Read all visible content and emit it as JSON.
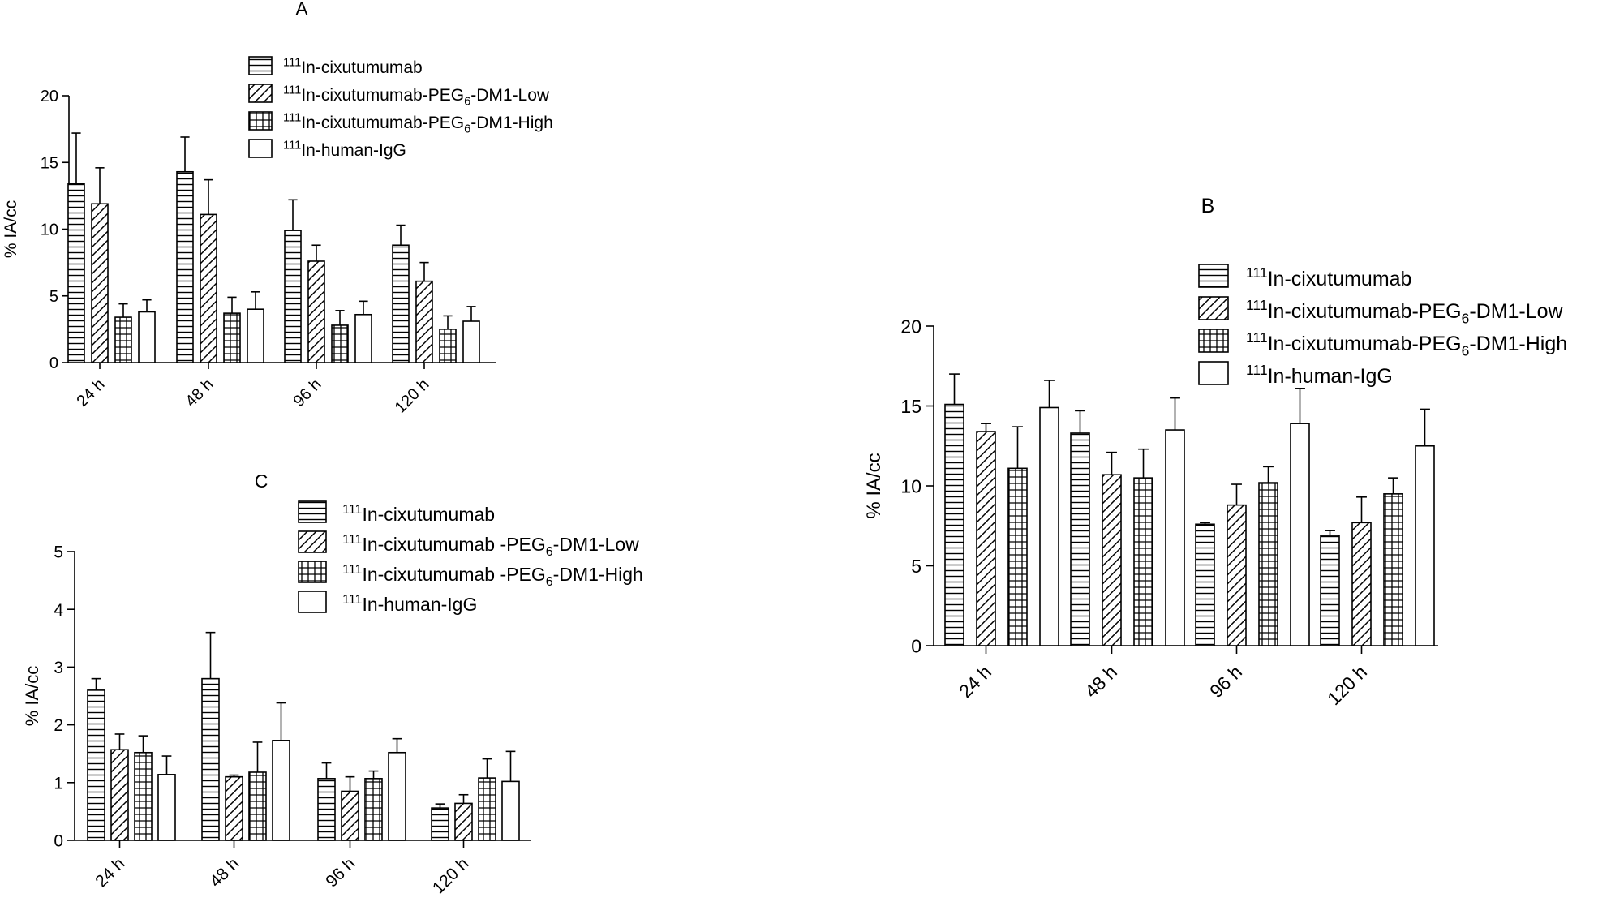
{
  "figure": {
    "panels": [
      "A",
      "B",
      "C"
    ]
  },
  "chart_data": [
    {
      "panel": "A",
      "type": "bar",
      "title": "A",
      "ylabel": "% IA/cc",
      "xlabel": "",
      "ylim": [
        0,
        20
      ],
      "yticks": [
        0,
        5,
        10,
        15,
        20
      ],
      "categories": [
        "24 h",
        "48 h",
        "96 h",
        "120 h"
      ],
      "legend_position": "top-right",
      "series": [
        {
          "name": "111In-cixutumumab",
          "iso": "111",
          "label": "In-cixutumumab",
          "sub": "",
          "tail": "",
          "pattern": "hlines",
          "values": [
            13.4,
            14.3,
            9.9,
            8.8
          ],
          "errors": [
            3.8,
            2.6,
            2.3,
            1.5
          ]
        },
        {
          "name": "111In-cixutumumab-PEG6-DM1-Low",
          "iso": "111",
          "label": "In-cixutumumab-PEG",
          "sub": "6",
          "tail": "-DM1-Low",
          "pattern": "diag",
          "values": [
            11.9,
            11.1,
            7.6,
            6.1
          ],
          "errors": [
            2.7,
            2.6,
            1.2,
            1.4
          ]
        },
        {
          "name": "111In-cixutumumab-PEG6-DM1-High",
          "iso": "111",
          "label": "In-cixutumumab-PEG",
          "sub": "6",
          "tail": "-DM1-High",
          "pattern": "grid",
          "values": [
            3.4,
            3.7,
            2.8,
            2.5
          ],
          "errors": [
            1.0,
            1.2,
            1.1,
            1.0
          ]
        },
        {
          "name": "111In-human-IgG",
          "iso": "111",
          "label": "In-human-IgG",
          "sub": "",
          "tail": "",
          "pattern": "white",
          "values": [
            3.8,
            4.0,
            3.6,
            3.1
          ],
          "errors": [
            0.9,
            1.3,
            1.0,
            1.1
          ]
        }
      ]
    },
    {
      "panel": "B",
      "type": "bar",
      "title": "B",
      "ylabel": "% IA/cc",
      "xlabel": "",
      "ylim": [
        0,
        20
      ],
      "yticks": [
        0,
        5,
        10,
        15,
        20
      ],
      "categories": [
        "24 h",
        "48 h",
        "96 h",
        "120 h"
      ],
      "legend_position": "top-right",
      "series": [
        {
          "name": "111In-cixutumumab",
          "iso": "111",
          "label": "In-cixutumumab",
          "sub": "",
          "tail": "",
          "pattern": "hlines",
          "values": [
            15.1,
            13.3,
            7.6,
            6.9
          ],
          "errors": [
            1.9,
            1.4,
            0.1,
            0.3
          ]
        },
        {
          "name": "111In-cixutumumab-PEG6-DM1-Low",
          "iso": "111",
          "label": "In-cixutumumab-PEG",
          "sub": "6",
          "tail": "-DM1-Low",
          "pattern": "diag",
          "values": [
            13.4,
            10.7,
            8.8,
            7.7
          ],
          "errors": [
            0.5,
            1.4,
            1.3,
            1.6
          ]
        },
        {
          "name": "111In-cixutumumab-PEG6-DM1-High",
          "iso": "111",
          "label": "In-cixutumumab-PEG",
          "sub": "6",
          "tail": "-DM1-High",
          "pattern": "grid",
          "values": [
            11.1,
            10.5,
            10.2,
            9.5
          ],
          "errors": [
            2.6,
            1.8,
            1.0,
            1.0
          ]
        },
        {
          "name": "111In-human-IgG",
          "iso": "111",
          "label": "In-human-IgG",
          "sub": "",
          "tail": "",
          "pattern": "white",
          "values": [
            14.9,
            13.5,
            13.9,
            12.5
          ],
          "errors": [
            1.7,
            2.0,
            2.2,
            2.3
          ]
        }
      ]
    },
    {
      "panel": "C",
      "type": "bar",
      "title": "C",
      "ylabel": "% IA/cc",
      "xlabel": "",
      "ylim": [
        0,
        5
      ],
      "yticks": [
        0,
        1,
        2,
        3,
        4,
        5
      ],
      "categories": [
        "24 h",
        "48 h",
        "96 h",
        "120 h"
      ],
      "legend_position": "top-right",
      "series": [
        {
          "name": "111In-cixutumumab",
          "iso": "111",
          "label": "In-cixutumumab",
          "sub": "",
          "tail": "",
          "pattern": "hlines",
          "values": [
            2.6,
            2.8,
            1.07,
            0.56
          ],
          "errors": [
            0.2,
            0.8,
            0.27,
            0.07
          ]
        },
        {
          "name": "111In-cixutumumab -PEG6-DM1-Low",
          "iso": "111",
          "label": "In-cixutumumab -PEG",
          "sub": "6",
          "tail": "-DM1-Low",
          "pattern": "diag",
          "values": [
            1.57,
            1.1,
            0.85,
            0.64
          ],
          "errors": [
            0.27,
            0.03,
            0.25,
            0.15
          ]
        },
        {
          "name": "111In-cixutumumab -PEG6-DM1-High",
          "iso": "111",
          "label": "In-cixutumumab -PEG",
          "sub": "6",
          "tail": "-DM1-High",
          "pattern": "grid",
          "values": [
            1.52,
            1.18,
            1.07,
            1.08
          ],
          "errors": [
            0.29,
            0.52,
            0.13,
            0.33
          ]
        },
        {
          "name": "111In-human-IgG",
          "iso": "111",
          "label": "In-human-IgG",
          "sub": "",
          "tail": "",
          "pattern": "white",
          "values": [
            1.14,
            1.73,
            1.52,
            1.02
          ],
          "errors": [
            0.32,
            0.65,
            0.24,
            0.52
          ]
        }
      ]
    }
  ]
}
